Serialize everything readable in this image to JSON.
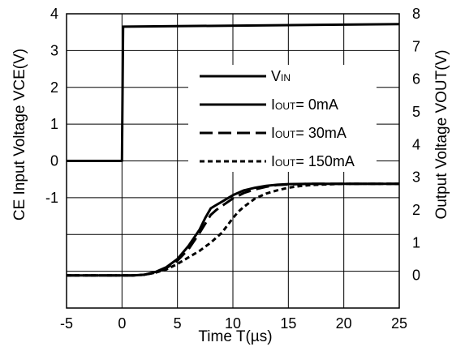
{
  "chart_data": {
    "type": "line",
    "title": "",
    "xlabel": "Time T(µs)",
    "ylabel_left": "CE Input Voltage VCE(V)",
    "ylabel_right": "Output Voltage VOUT(V)",
    "xlim": [
      -5,
      25
    ],
    "xticks": [
      "-5",
      "0",
      "5",
      "10",
      "15",
      "20",
      "25"
    ],
    "ylim_left": [
      -4,
      4
    ],
    "yticks_left": [
      "4",
      "3",
      "2",
      "1",
      "0",
      "-1"
    ],
    "ylim_right": [
      -1,
      8
    ],
    "yticks_right": [
      "8",
      "7",
      "6",
      "5",
      "4",
      "3",
      "2",
      "1",
      "0"
    ],
    "grid": true,
    "legend_position": "center-right",
    "series": [
      {
        "name": "VIN",
        "legend_main": "V",
        "legend_sub": "IN",
        "legend_rest": "",
        "axis": "left",
        "dash": "solid",
        "x": [
          -5,
          0,
          0.1,
          25
        ],
        "y": [
          0,
          0,
          3.65,
          3.72
        ]
      },
      {
        "name": "IOUT= 0mA",
        "legend_main": "I",
        "legend_sub": "OUT",
        "legend_rest": "= 0mA",
        "axis": "right",
        "dash": "solid",
        "x": [
          -5,
          0,
          1,
          2,
          3,
          4,
          5,
          6,
          7,
          7.5,
          8,
          8.5,
          9,
          10,
          11,
          12,
          13,
          14,
          15,
          17,
          20,
          25
        ],
        "y": [
          0,
          0,
          0,
          0.02,
          0.1,
          0.25,
          0.5,
          0.9,
          1.4,
          1.75,
          2.05,
          2.15,
          2.25,
          2.45,
          2.6,
          2.68,
          2.74,
          2.77,
          2.79,
          2.8,
          2.8,
          2.8
        ]
      },
      {
        "name": "IOUT= 30mA",
        "legend_main": "I",
        "legend_sub": "OUT",
        "legend_rest": "= 30mA",
        "axis": "right",
        "dash": "long",
        "x": [
          -5,
          0,
          1,
          2,
          3,
          4,
          5,
          6,
          7,
          8,
          8.5,
          9,
          10,
          11,
          12,
          13,
          14,
          15,
          17,
          20,
          25
        ],
        "y": [
          0,
          0,
          0,
          0.02,
          0.08,
          0.22,
          0.45,
          0.8,
          1.3,
          1.85,
          2.0,
          2.12,
          2.35,
          2.52,
          2.63,
          2.71,
          2.76,
          2.78,
          2.8,
          2.8,
          2.8
        ]
      },
      {
        "name": "IOUT= 150mA",
        "legend_main": "I",
        "legend_sub": "OUT",
        "legend_rest": "= 150mA",
        "axis": "right",
        "dash": "short",
        "x": [
          -5,
          0,
          1,
          2,
          3,
          4,
          5,
          6,
          7,
          8,
          9,
          10,
          10.5,
          11,
          12,
          13,
          14,
          15,
          16,
          17,
          20,
          25
        ],
        "y": [
          0,
          0,
          0,
          0.02,
          0.08,
          0.18,
          0.35,
          0.55,
          0.75,
          1.0,
          1.3,
          1.75,
          1.95,
          2.1,
          2.35,
          2.5,
          2.6,
          2.68,
          2.73,
          2.76,
          2.8,
          2.8
        ]
      }
    ]
  }
}
